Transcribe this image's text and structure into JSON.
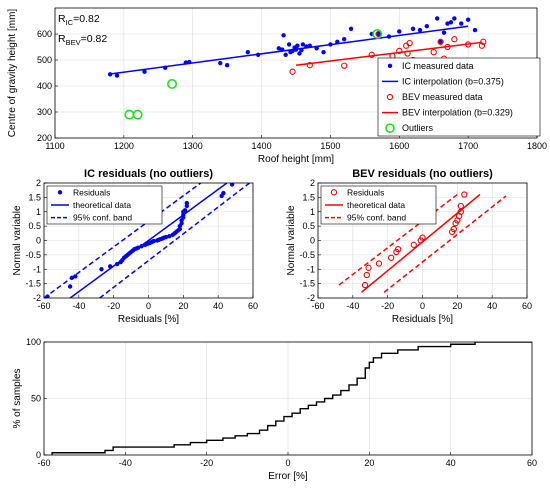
{
  "chart_data": [
    {
      "id": "top",
      "type": "scatter",
      "title": "",
      "xlabel": "Roof height [mm]",
      "ylabel": "Centre of gravity height [mm]",
      "xlim": [
        1100,
        1800
      ],
      "ylim": [
        200,
        700
      ],
      "xticks": [
        1100,
        1200,
        1300,
        1400,
        1500,
        1600,
        1700,
        1800
      ],
      "yticks": [
        200,
        300,
        400,
        500,
        600
      ],
      "grid": true,
      "legend_position": "bottom-right",
      "annotations": [
        {
          "main": "R",
          "sub": "IC",
          "value": "=0.82"
        },
        {
          "main": "R",
          "sub": "BEV",
          "value": "=0.82"
        }
      ],
      "series": [
        {
          "name": "IC measured data",
          "kind": "points",
          "marker": "dot",
          "color": "#0000ff",
          "points": [
            [
              1180,
              445
            ],
            [
              1190,
              440
            ],
            [
              1230,
              455
            ],
            [
              1260,
              470
            ],
            [
              1290,
              490
            ],
            [
              1295,
              492
            ],
            [
              1340,
              488
            ],
            [
              1350,
              480
            ],
            [
              1380,
              530
            ],
            [
              1395,
              520
            ],
            [
              1425,
              545
            ],
            [
              1430,
              540
            ],
            [
              1432,
              595
            ],
            [
              1435,
              520
            ],
            [
              1440,
              560
            ],
            [
              1442,
              530
            ],
            [
              1445,
              535
            ],
            [
              1448,
              548
            ],
            [
              1450,
              540
            ],
            [
              1452,
              555
            ],
            [
              1455,
              525
            ],
            [
              1458,
              538
            ],
            [
              1460,
              560
            ],
            [
              1465,
              552
            ],
            [
              1470,
              555
            ],
            [
              1480,
              545
            ],
            [
              1490,
              530
            ],
            [
              1500,
              560
            ],
            [
              1510,
              570
            ],
            [
              1520,
              580
            ],
            [
              1530,
              620
            ],
            [
              1560,
              600
            ],
            [
              1600,
              610
            ],
            [
              1620,
              620
            ],
            [
              1630,
              615
            ],
            [
              1640,
              630
            ],
            [
              1655,
              660
            ],
            [
              1660,
              570
            ],
            [
              1665,
              605
            ],
            [
              1670,
              640
            ],
            [
              1675,
              645
            ],
            [
              1680,
              660
            ],
            [
              1690,
              640
            ],
            [
              1700,
              655
            ],
            [
              1710,
              615
            ],
            [
              1570,
              600
            ],
            [
              1585,
              590
            ]
          ]
        },
        {
          "name": "IC interpolation (b=0.375)",
          "kind": "line",
          "color": "#0000ff",
          "points": [
            [
              1180,
              446
            ],
            [
              1700,
              630
            ]
          ]
        },
        {
          "name": "BEV measured data",
          "kind": "points",
          "marker": "circle",
          "color": "#ff0000",
          "points": [
            [
              1445,
              455
            ],
            [
              1470,
              480
            ],
            [
              1520,
              478
            ],
            [
              1560,
              520
            ],
            [
              1570,
              600
            ],
            [
              1590,
              515
            ],
            [
              1600,
              535
            ],
            [
              1610,
              555
            ],
            [
              1612,
              525
            ],
            [
              1615,
              565
            ],
            [
              1620,
              500
            ],
            [
              1650,
              530
            ],
            [
              1660,
              570
            ],
            [
              1665,
              505
            ],
            [
              1670,
              550
            ],
            [
              1680,
              580
            ],
            [
              1700,
              560
            ],
            [
              1720,
              555
            ],
            [
              1722,
              570
            ]
          ]
        },
        {
          "name": "BEV interpolation (b=0.329)",
          "kind": "line",
          "color": "#ff0000",
          "points": [
            [
              1450,
              480
            ],
            [
              1720,
              568
            ]
          ]
        },
        {
          "name": "Outliers",
          "kind": "points",
          "marker": "ring",
          "color": "#22dd22",
          "points": [
            [
              1208,
              290
            ],
            [
              1220,
              290
            ],
            [
              1270,
              408
            ],
            [
              1568,
              600
            ]
          ]
        }
      ]
    },
    {
      "id": "ic_res",
      "type": "scatter",
      "title": "IC residuals (no outliers)",
      "xlabel": "Residuals [%]",
      "ylabel": "Normal variable",
      "xlim": [
        -60,
        60
      ],
      "ylim": [
        -2,
        2
      ],
      "xticks": [
        -60,
        -40,
        -20,
        0,
        20,
        40,
        60
      ],
      "yticks": [
        -2,
        -1.5,
        -1,
        -0.5,
        0,
        0.5,
        1,
        1.5,
        2
      ],
      "grid": true,
      "legend_position": "top-left",
      "series": [
        {
          "name": "Residuals",
          "kind": "points",
          "marker": "dot",
          "color": "#0000ff",
          "points": [
            [
              -58,
              -1.95
            ],
            [
              -45,
              -1.6
            ],
            [
              -44,
              -1.3
            ],
            [
              -42,
              -1.25
            ],
            [
              -27,
              -1.0
            ],
            [
              -22,
              -0.9
            ],
            [
              -18,
              -0.82
            ],
            [
              -16,
              -0.75
            ],
            [
              -15,
              -0.68
            ],
            [
              -14,
              -0.6
            ],
            [
              -13,
              -0.55
            ],
            [
              -12,
              -0.5
            ],
            [
              -11,
              -0.45
            ],
            [
              -10,
              -0.4
            ],
            [
              -9,
              -0.35
            ],
            [
              -8,
              -0.3
            ],
            [
              -7,
              -0.28
            ],
            [
              -6,
              -0.25
            ],
            [
              -4,
              -0.2
            ],
            [
              -2,
              -0.15
            ],
            [
              -1,
              -0.12
            ],
            [
              0,
              -0.1
            ],
            [
              1,
              -0.08
            ],
            [
              2,
              -0.05
            ],
            [
              3,
              -0.02
            ],
            [
              5,
              0.0
            ],
            [
              6,
              0.03
            ],
            [
              7,
              0.05
            ],
            [
              8,
              0.07
            ],
            [
              9,
              0.1
            ],
            [
              10,
              0.12
            ],
            [
              12,
              0.15
            ],
            [
              14,
              0.2
            ],
            [
              15,
              0.25
            ],
            [
              16,
              0.3
            ],
            [
              17,
              0.35
            ],
            [
              18,
              0.4
            ],
            [
              18,
              0.5
            ],
            [
              19,
              0.6
            ],
            [
              19,
              0.7
            ],
            [
              20,
              0.8
            ],
            [
              20,
              0.9
            ],
            [
              20,
              1.0
            ],
            [
              21,
              1.05
            ],
            [
              22,
              1.2
            ],
            [
              22,
              1.3
            ],
            [
              42,
              1.55
            ],
            [
              43,
              1.65
            ],
            [
              48,
              1.95
            ]
          ]
        },
        {
          "name": "theoretical data",
          "kind": "line",
          "style": "solid",
          "color": "#0000ff",
          "points": [
            [
              -45,
              -2
            ],
            [
              45,
              2
            ]
          ]
        },
        {
          "name": "95% conf. band",
          "kind": "line",
          "style": "dashed",
          "color": "#0000ff",
          "points": [
            [
              -60,
              -2
            ],
            [
              30,
              2
            ]
          ]
        },
        {
          "name": "",
          "kind": "line",
          "style": "dashed",
          "color": "#0000ff",
          "points": [
            [
              -28,
              -2
            ],
            [
              58,
              2
            ]
          ]
        }
      ]
    },
    {
      "id": "bev_res",
      "type": "scatter",
      "title": "BEV residuals (no outliers)",
      "xlabel": "Residuals [%]",
      "ylabel": "Normal variable",
      "xlim": [
        -60,
        60
      ],
      "ylim": [
        -2,
        2
      ],
      "xticks": [
        -60,
        -40,
        -20,
        0,
        20,
        40,
        60
      ],
      "yticks": [
        -2,
        -1.5,
        -1,
        -0.5,
        0,
        0.5,
        1,
        1.5,
        2
      ],
      "grid": true,
      "legend_position": "top-left",
      "series": [
        {
          "name": "Residuals",
          "kind": "points",
          "marker": "circle",
          "color": "#ff0000",
          "points": [
            [
              -33,
              -1.55
            ],
            [
              -32,
              -1.2
            ],
            [
              -31,
              -0.95
            ],
            [
              -25,
              -0.8
            ],
            [
              -18,
              -0.6
            ],
            [
              -15,
              -0.4
            ],
            [
              -14,
              -0.3
            ],
            [
              -5,
              -0.15
            ],
            [
              -1,
              0.0
            ],
            [
              0,
              0.1
            ],
            [
              17,
              0.3
            ],
            [
              18,
              0.4
            ],
            [
              19,
              0.6
            ],
            [
              20,
              0.7
            ],
            [
              21,
              0.85
            ],
            [
              22,
              1.0
            ],
            [
              22,
              1.2
            ],
            [
              24,
              1.6
            ]
          ]
        },
        {
          "name": "theoretical data",
          "kind": "line",
          "style": "solid",
          "color": "#ff0000",
          "points": [
            [
              -35,
              -1.8
            ],
            [
              33,
              1.6
            ]
          ]
        },
        {
          "name": "95% conf. band",
          "kind": "line",
          "style": "dashed",
          "color": "#ff0000",
          "points": [
            [
              -48,
              -1.55
            ],
            [
              20,
              1.6
            ]
          ]
        },
        {
          "name": "",
          "kind": "line",
          "style": "dashed",
          "color": "#ff0000",
          "points": [
            [
              -22,
              -1.8
            ],
            [
              48,
              1.55
            ]
          ]
        }
      ]
    },
    {
      "id": "cdf",
      "type": "line",
      "title": "",
      "xlabel": "Error [%]",
      "ylabel": "% of samples",
      "xlim": [
        -60,
        60
      ],
      "ylim": [
        0,
        100
      ],
      "xticks": [
        -60,
        -40,
        -20,
        0,
        20,
        40,
        60
      ],
      "yticks": [
        0,
        50,
        100
      ],
      "grid": true,
      "series": [
        {
          "name": "",
          "kind": "line",
          "style": "solid",
          "color": "#000000",
          "points": [
            [
              -58,
              0
            ],
            [
              -58,
              2
            ],
            [
              -45,
              2
            ],
            [
              -45,
              4
            ],
            [
              -43,
              4
            ],
            [
              -43,
              7
            ],
            [
              -28,
              7
            ],
            [
              -28,
              9
            ],
            [
              -24,
              9
            ],
            [
              -24,
              11
            ],
            [
              -20,
              11
            ],
            [
              -20,
              13
            ],
            [
              -16,
              13
            ],
            [
              -16,
              15
            ],
            [
              -13,
              15
            ],
            [
              -13,
              17
            ],
            [
              -10,
              17
            ],
            [
              -10,
              19
            ],
            [
              -7,
              19
            ],
            [
              -7,
              22
            ],
            [
              -5,
              22
            ],
            [
              -5,
              26
            ],
            [
              -3,
              26
            ],
            [
              -3,
              30
            ],
            [
              -1,
              30
            ],
            [
              -1,
              34
            ],
            [
              1,
              34
            ],
            [
              1,
              37
            ],
            [
              3,
              37
            ],
            [
              3,
              41
            ],
            [
              5,
              41
            ],
            [
              5,
              44
            ],
            [
              7,
              44
            ],
            [
              7,
              47
            ],
            [
              9,
              47
            ],
            [
              9,
              50
            ],
            [
              11,
              50
            ],
            [
              11,
              53
            ],
            [
              13,
              53
            ],
            [
              13,
              57
            ],
            [
              15,
              57
            ],
            [
              15,
              62
            ],
            [
              17,
              62
            ],
            [
              17,
              68
            ],
            [
              19,
              68
            ],
            [
              19,
              77
            ],
            [
              20,
              77
            ],
            [
              20,
              82
            ],
            [
              21,
              82
            ],
            [
              21,
              86
            ],
            [
              23,
              86
            ],
            [
              23,
              90
            ],
            [
              27,
              90
            ],
            [
              27,
              93
            ],
            [
              32,
              93
            ],
            [
              32,
              96
            ],
            [
              40,
              96
            ],
            [
              40,
              98
            ],
            [
              46,
              98
            ],
            [
              46,
              100
            ],
            [
              60,
              100
            ]
          ]
        }
      ]
    }
  ]
}
